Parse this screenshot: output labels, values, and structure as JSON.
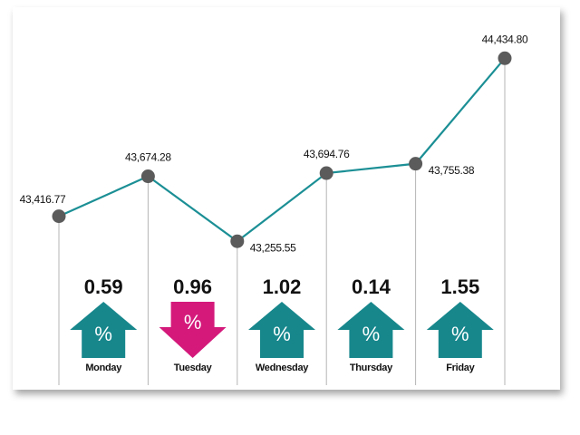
{
  "chart_data": {
    "type": "line",
    "categories": [
      null,
      null,
      null,
      null,
      null,
      null
    ],
    "series": [
      {
        "color": "#1b8f95",
        "values": [
          43416.77,
          43674.28,
          43255.55,
          43694.76,
          43755.38,
          44434.8
        ],
        "value_labels": [
          "43,416.77",
          "43,674.28",
          "43,255.55",
          "43,694.76",
          "43,755.38",
          "44,434.80"
        ]
      }
    ],
    "ylim": [
      43000,
      44600
    ],
    "marker_color": "#5b5b5b",
    "changes": {
      "symbol": "%",
      "days": [
        "Monday",
        "Tuesday",
        "Wednesday",
        "Thursday",
        "Friday"
      ],
      "values": [
        0.59,
        0.96,
        1.02,
        0.14,
        1.55
      ],
      "direction": [
        "up",
        "down",
        "up",
        "up",
        "up"
      ],
      "up_color": "#17878c",
      "down_color": "#d4197b"
    }
  }
}
